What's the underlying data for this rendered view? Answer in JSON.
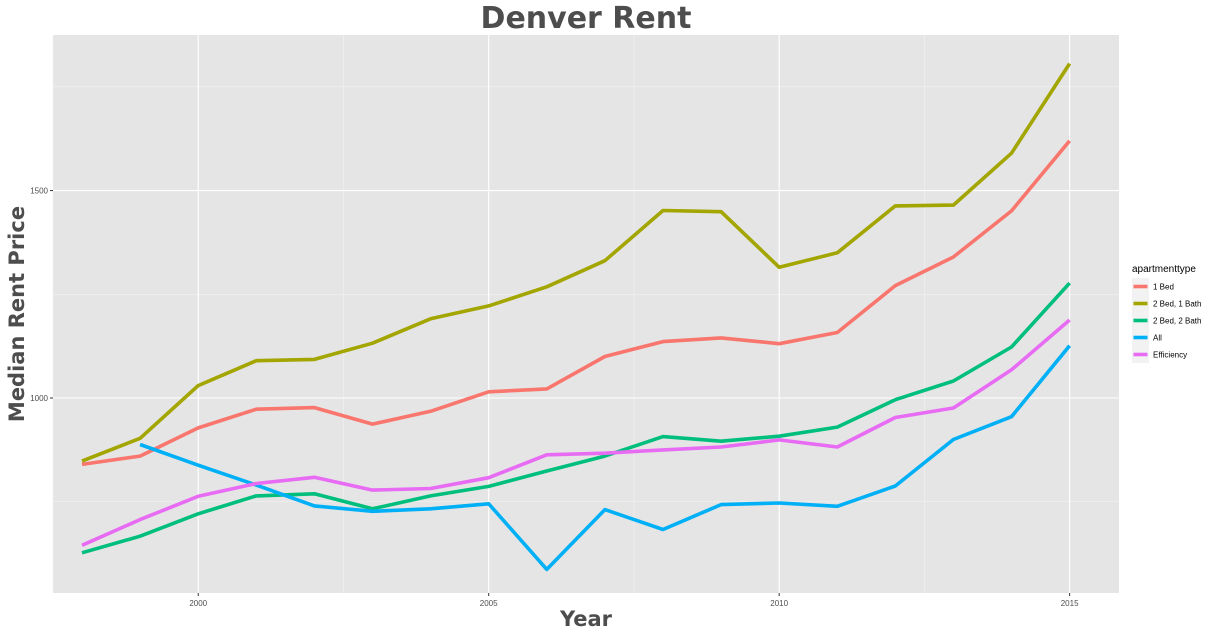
{
  "chart_data": {
    "type": "line",
    "title": "Denver Rent",
    "xlabel": "Year",
    "ylabel": "Median Rent Price",
    "xlim": [
      1997.5,
      2015.85
    ],
    "ylim": [
      530,
      1875
    ],
    "x_ticks": [
      2000,
      2005,
      2010,
      2015
    ],
    "y_ticks": [
      1000,
      1500
    ],
    "grid": true,
    "background": "#e5e5e5",
    "legend_title": "apartmenttype",
    "legend_position": "right",
    "series": [
      {
        "name": "1 Bed",
        "color": "#f8766d",
        "x": [
          1998,
          1999,
          2000,
          2001,
          2002,
          2003,
          2004,
          2005,
          2006,
          2007,
          2008,
          2009,
          2010,
          2011,
          2012,
          2013,
          2014,
          2015
        ],
        "values": [
          840,
          860,
          928,
          973,
          977,
          937,
          968,
          1015,
          1022,
          1100,
          1136,
          1145,
          1131,
          1158,
          1271,
          1340,
          1451,
          1620
        ]
      },
      {
        "name": "2 Bed, 1 Bath",
        "color": "#a3a500",
        "x": [
          1998,
          1999,
          2000,
          2001,
          2002,
          2003,
          2004,
          2005,
          2006,
          2007,
          2008,
          2009,
          2010,
          2011,
          2012,
          2013,
          2014,
          2015
        ],
        "values": [
          848,
          903,
          1030,
          1090,
          1093,
          1132,
          1191,
          1222,
          1268,
          1331,
          1452,
          1449,
          1315,
          1350,
          1463,
          1465,
          1590,
          1806
        ]
      },
      {
        "name": "2 Bed, 2 Bath",
        "color": "#00bf7d",
        "x": [
          1998,
          1999,
          2000,
          2001,
          2002,
          2003,
          2004,
          2005,
          2006,
          2007,
          2008,
          2009,
          2010,
          2011,
          2012,
          2013,
          2014,
          2015
        ],
        "values": [
          627,
          667,
          721,
          764,
          769,
          733,
          764,
          787,
          824,
          860,
          907,
          896,
          908,
          930,
          996,
          1041,
          1123,
          1277
        ]
      },
      {
        "name": "All",
        "color": "#00b0f6",
        "x": [
          1999,
          2000,
          2001,
          2002,
          2003,
          2004,
          2005,
          2006,
          2007,
          2008,
          2009,
          2010,
          2011,
          2012,
          2013,
          2014,
          2015
        ],
        "values": [
          888,
          838,
          790,
          740,
          727,
          733,
          745,
          587,
          731,
          683,
          743,
          747,
          739,
          788,
          900,
          955,
          1126
        ]
      },
      {
        "name": "Efficiency",
        "color": "#e76bf3",
        "x": [
          1998,
          1999,
          2000,
          2001,
          2002,
          2003,
          2004,
          2005,
          2006,
          2007,
          2008,
          2009,
          2010,
          2011,
          2012,
          2013,
          2014,
          2015
        ],
        "values": [
          645,
          707,
          763,
          794,
          809,
          778,
          782,
          808,
          863,
          867,
          875,
          882,
          899,
          882,
          953,
          976,
          1068,
          1188
        ]
      }
    ]
  }
}
